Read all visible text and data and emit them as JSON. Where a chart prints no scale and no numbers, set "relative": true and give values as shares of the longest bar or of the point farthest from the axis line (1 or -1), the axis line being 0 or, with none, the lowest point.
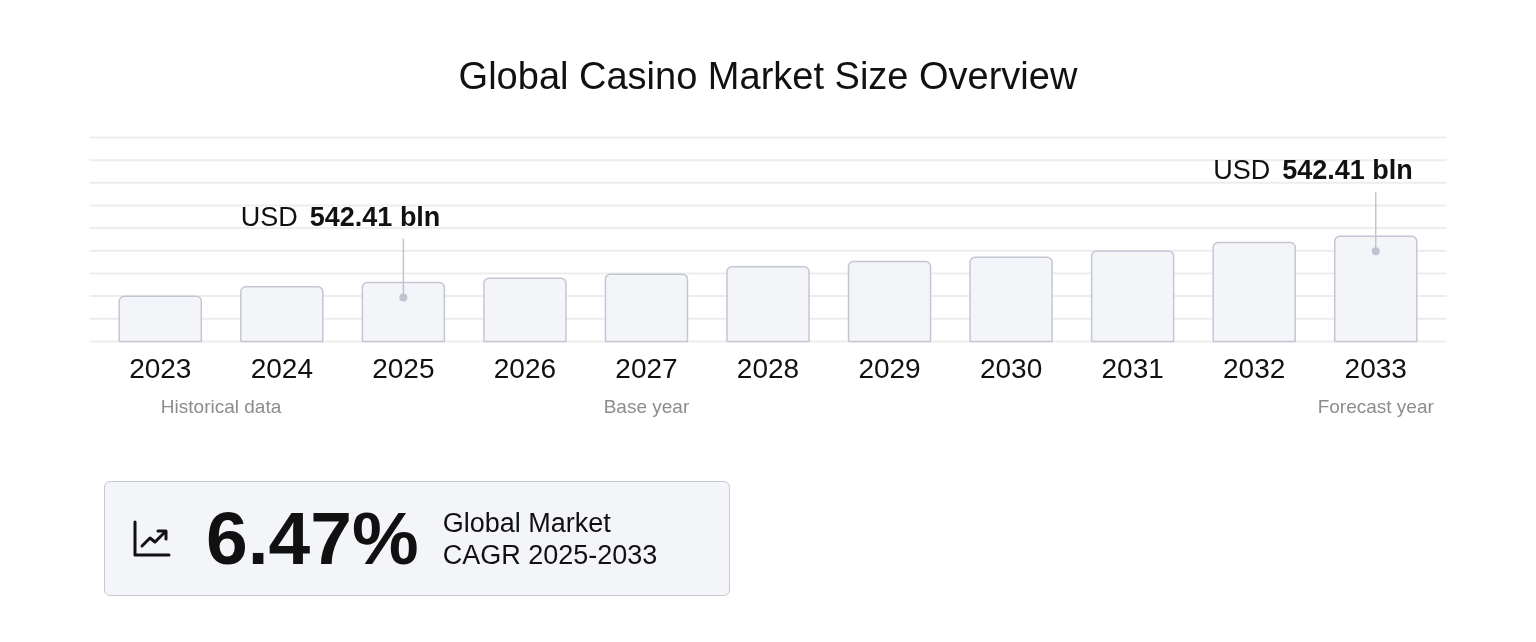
{
  "chart_data": [
    {
      "type": "bar",
      "title": "Global Casino Market Size Overview",
      "categories": [
        "2023",
        "2024",
        "2025",
        "2026",
        "2027",
        "2028",
        "2029",
        "2030",
        "2031",
        "2032",
        "2033"
      ],
      "values": [
        0.43,
        0.52,
        0.56,
        0.6,
        0.64,
        0.71,
        0.76,
        0.8,
        0.86,
        0.94,
        1
      ],
      "color": "#f4f5f9",
      "relative": true,
      "grid": true,
      "annotations": [
        {
          "text": "USD 542.41 bln",
          "x": "2025",
          "y": 0.56
        },
        {
          "text": "USD 542.41 bln",
          "x": "2033",
          "y": 1
        },
        "Historical data",
        "Base year",
        "Forecast year"
      ]
    },
    {
      "type": "other",
      "title": "6.47%",
      "subtitle": "Global Market CAGR 2025-2033"
    }
  ]
}
